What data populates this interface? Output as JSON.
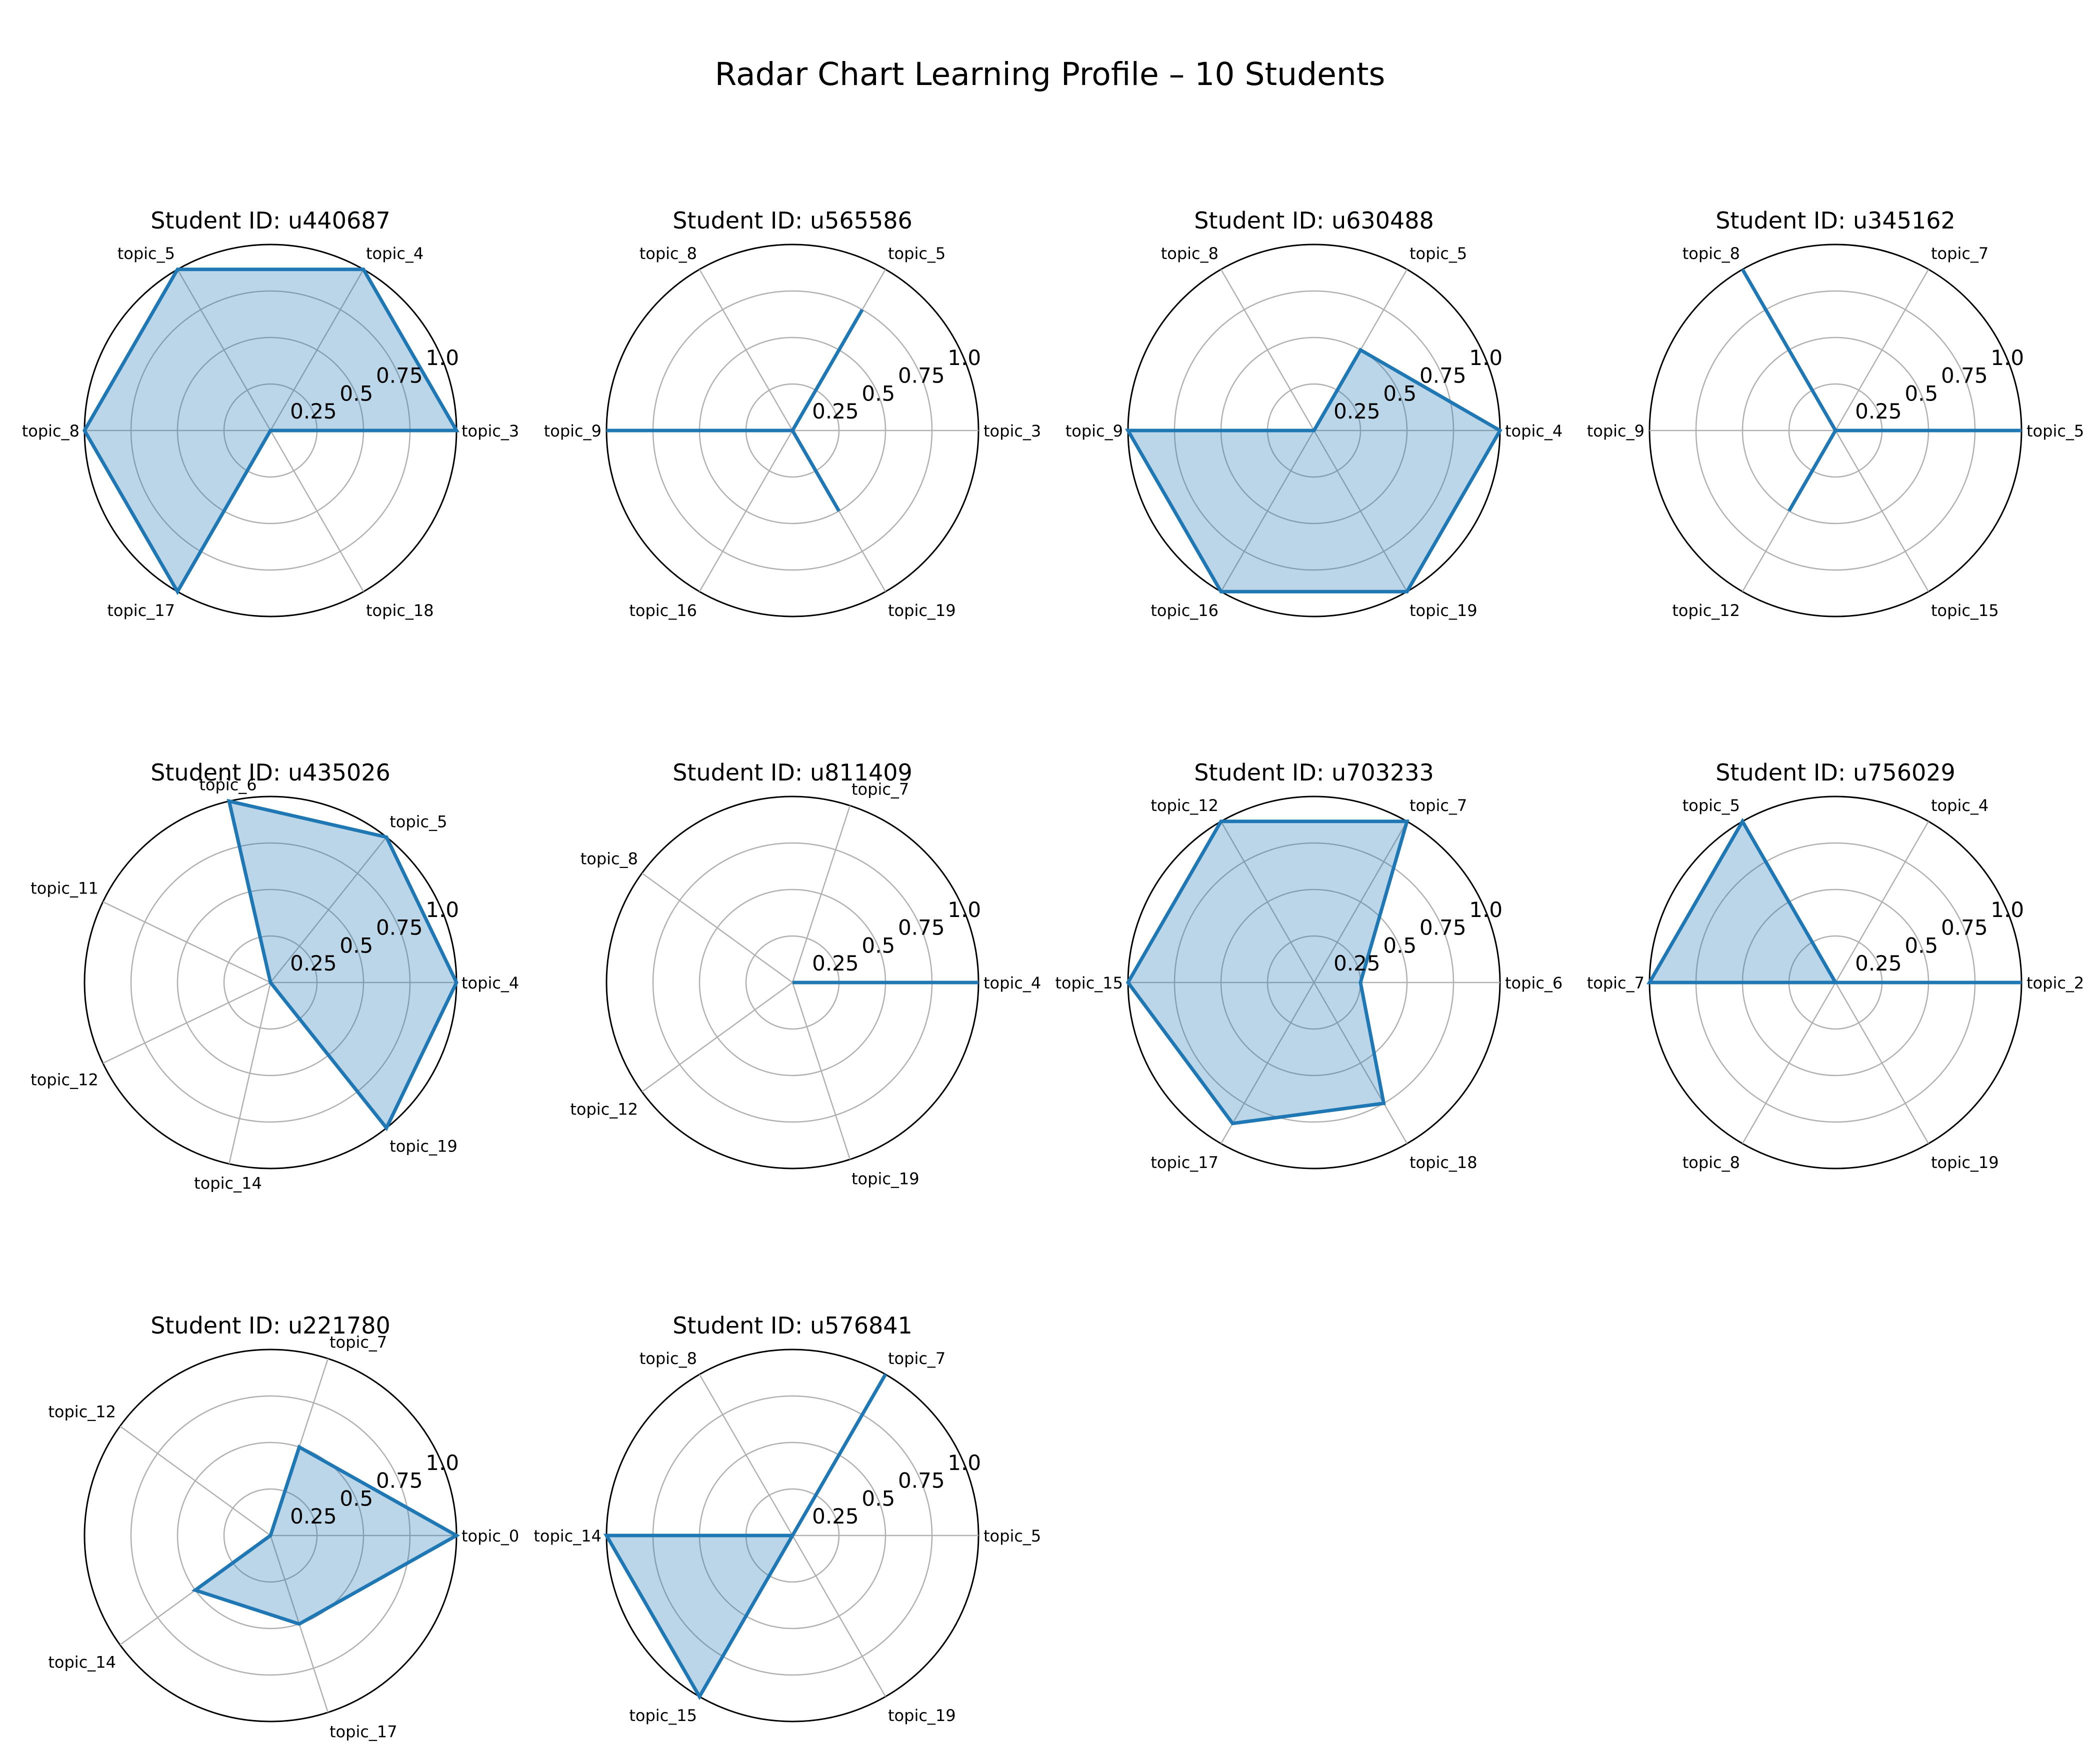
{
  "chart_data": {
    "type": "radar",
    "title": "Radar Chart Learning Profile – 10 Students",
    "rlim": [
      0,
      1
    ],
    "rticks": [
      0.25,
      0.5,
      0.75,
      1.0
    ],
    "rtick_labels": [
      "0.25",
      "0.5",
      "0.75",
      "1.0"
    ],
    "grid": true,
    "color": "#1f77b4",
    "fill_color": "#1f77b4",
    "fill_alpha": 0.3,
    "charts": [
      {
        "title": "Student ID: u440687",
        "categories": [
          "topic_3",
          "topic_4",
          "topic_5",
          "topic_8",
          "topic_17",
          "topic_18"
        ],
        "values": [
          1.0,
          1.0,
          1.0,
          1.0,
          1.0,
          0.0
        ]
      },
      {
        "title": "Student ID: u565586",
        "categories": [
          "topic_3",
          "topic_5",
          "topic_8",
          "topic_9",
          "topic_16",
          "topic_19"
        ],
        "values": [
          0.0,
          0.75,
          0.0,
          1.0,
          0.0,
          0.5
        ]
      },
      {
        "title": "Student ID: u630488",
        "categories": [
          "topic_4",
          "topic_5",
          "topic_8",
          "topic_9",
          "topic_16",
          "topic_19"
        ],
        "values": [
          1.0,
          0.5,
          0.0,
          1.0,
          1.0,
          1.0
        ]
      },
      {
        "title": "Student ID: u345162",
        "categories": [
          "topic_5",
          "topic_7",
          "topic_8",
          "topic_9",
          "topic_12",
          "topic_15"
        ],
        "values": [
          1.0,
          0.0,
          1.0,
          0.0,
          0.5,
          0.0
        ]
      },
      {
        "title": "Student ID: u435026",
        "categories": [
          "topic_4",
          "topic_5",
          "topic_6",
          "topic_11",
          "topic_12",
          "topic_14",
          "topic_19"
        ],
        "values": [
          1.0,
          1.0,
          1.0,
          0.0,
          0.0,
          0.0,
          1.0
        ]
      },
      {
        "title": "Student ID: u811409",
        "categories": [
          "topic_4",
          "topic_7",
          "topic_8",
          "topic_12",
          "topic_19"
        ],
        "values": [
          1.0,
          0.0,
          0.0,
          0.0,
          0.0
        ]
      },
      {
        "title": "Student ID: u703233",
        "categories": [
          "topic_6",
          "topic_7",
          "topic_12",
          "topic_15",
          "topic_17",
          "topic_18"
        ],
        "values": [
          0.25,
          1.0,
          1.0,
          1.0,
          0.875,
          0.75
        ]
      },
      {
        "title": "Student ID: u756029",
        "categories": [
          "topic_2",
          "topic_4",
          "topic_5",
          "topic_7",
          "topic_8",
          "topic_19"
        ],
        "values": [
          1.0,
          0.0,
          1.0,
          1.0,
          0.0,
          0.0
        ]
      },
      {
        "title": "Student ID: u221780",
        "categories": [
          "topic_0",
          "topic_7",
          "topic_12",
          "topic_14",
          "topic_17"
        ],
        "values": [
          1.0,
          0.5,
          0.0,
          0.5,
          0.5
        ]
      },
      {
        "title": "Student ID: u576841",
        "categories": [
          "topic_5",
          "topic_7",
          "topic_8",
          "topic_14",
          "topic_15",
          "topic_19"
        ],
        "values": [
          0.0,
          1.0,
          0.0,
          1.0,
          1.0,
          0.0
        ]
      }
    ]
  }
}
